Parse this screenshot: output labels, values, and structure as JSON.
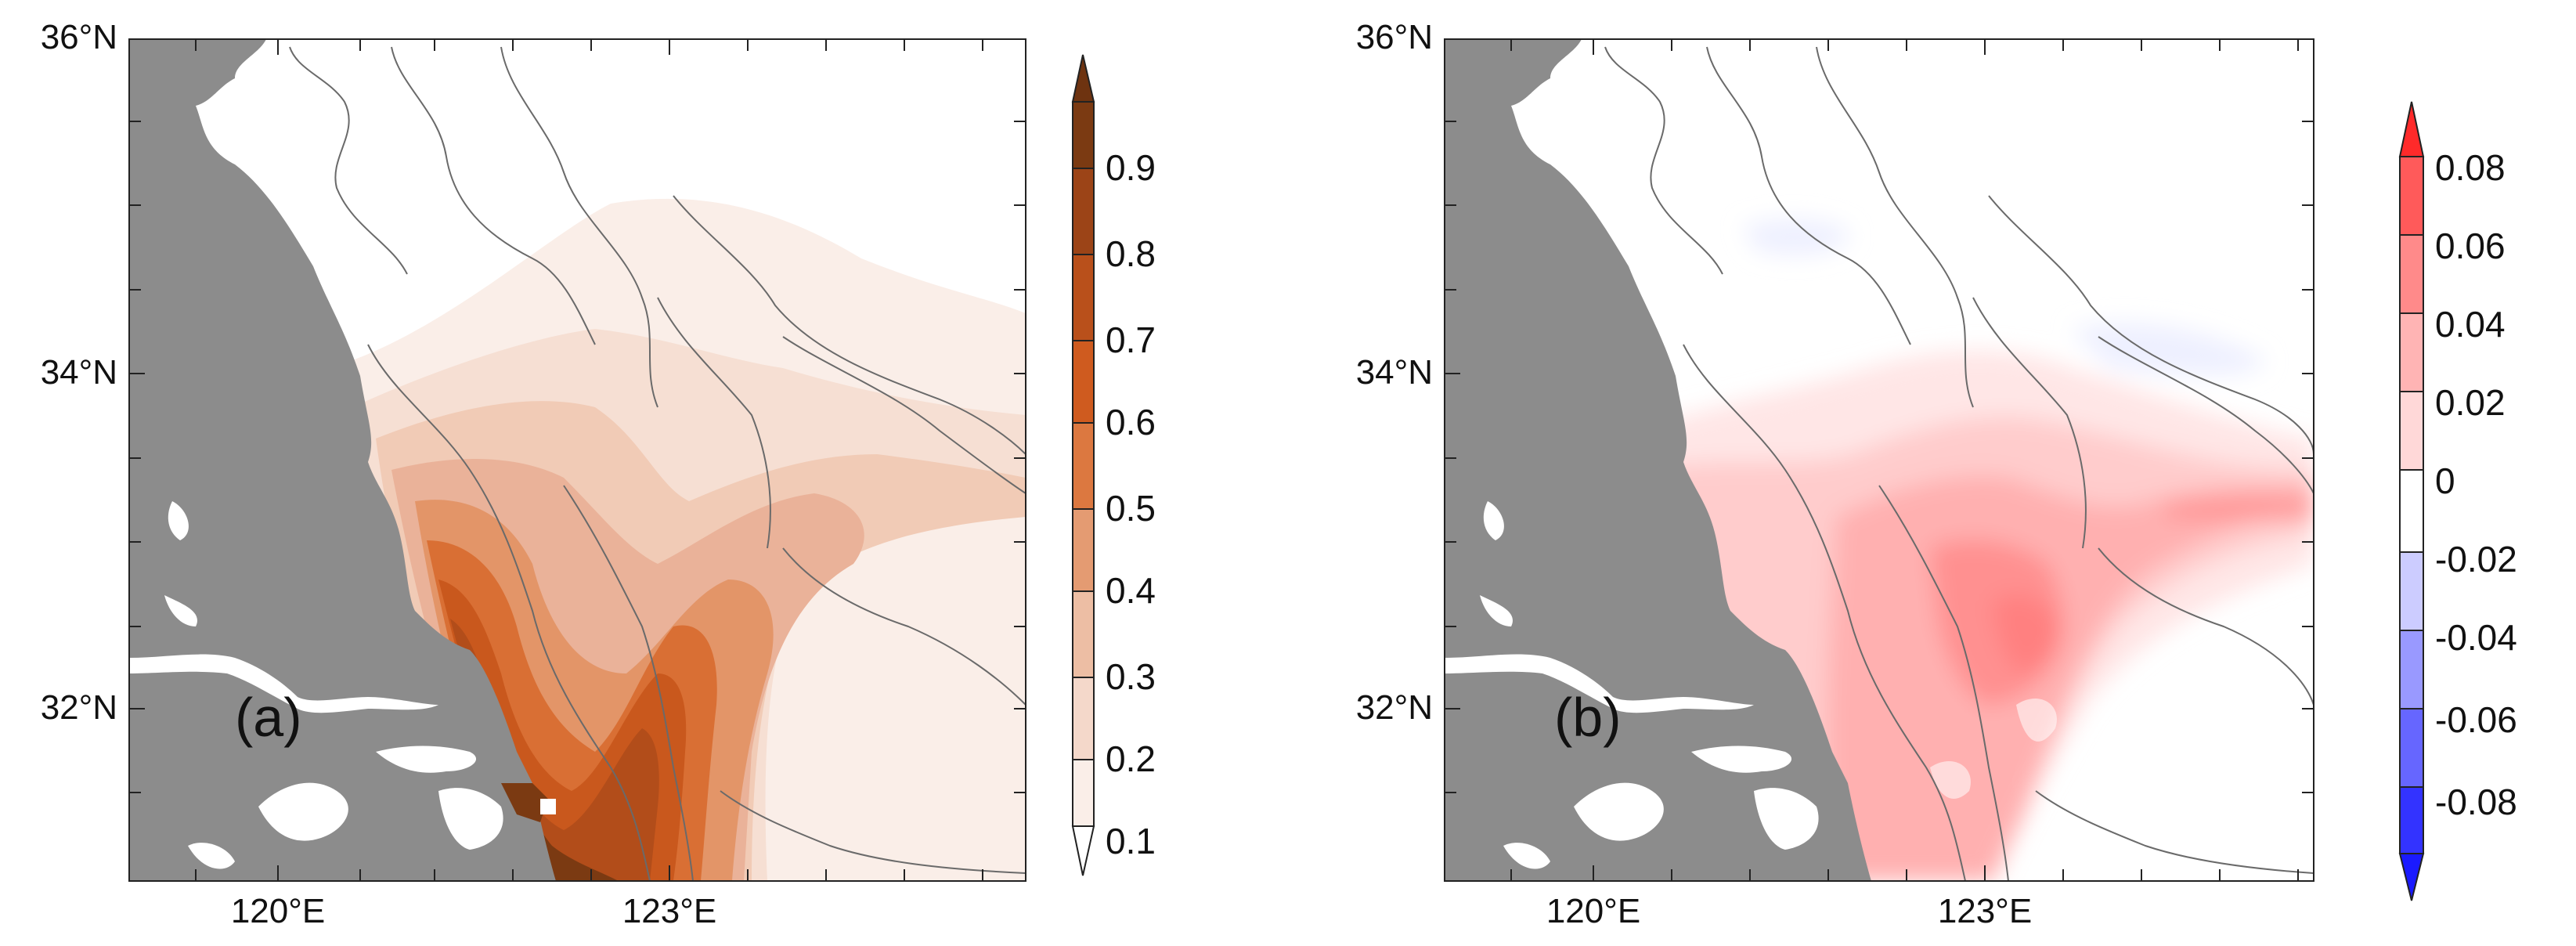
{
  "figure": {
    "latitude_labels": [
      "36°N",
      "34°N",
      "32°N"
    ],
    "longitude_labels": [
      "120°E",
      "123°E"
    ]
  },
  "panels": [
    {
      "label": "(a)",
      "colorbar": {
        "labels": [
          "0.9",
          "0.8",
          "0.7",
          "0.6",
          "0.5",
          "0.4",
          "0.3",
          "0.2",
          "0.1"
        ],
        "colors": [
          "#7b3a12",
          "#9c4417",
          "#b9501b",
          "#cf5b1f",
          "#dc7840",
          "#e49b72",
          "#edbea4",
          "#f4d8ca",
          "#faeee8"
        ],
        "top_arrow_color": "#6e3310",
        "bottom_arrow_color": "#ffffff"
      }
    },
    {
      "label": "(b)",
      "colorbar": {
        "labels": [
          "0.08",
          "0.06",
          "0.04",
          "0.02",
          "0",
          "-0.02",
          "-0.04",
          "-0.06",
          "-0.08"
        ],
        "colors": [
          "#ff5a5a",
          "#ff8a8a",
          "#ffb4b4",
          "#ffd8d8",
          "#ffffff",
          "#ccccff",
          "#9999ff",
          "#6666ff",
          "#3333ff"
        ],
        "top_arrow_color": "#ff2a2a",
        "bottom_arrow_color": "#1a1aff"
      }
    }
  ]
}
